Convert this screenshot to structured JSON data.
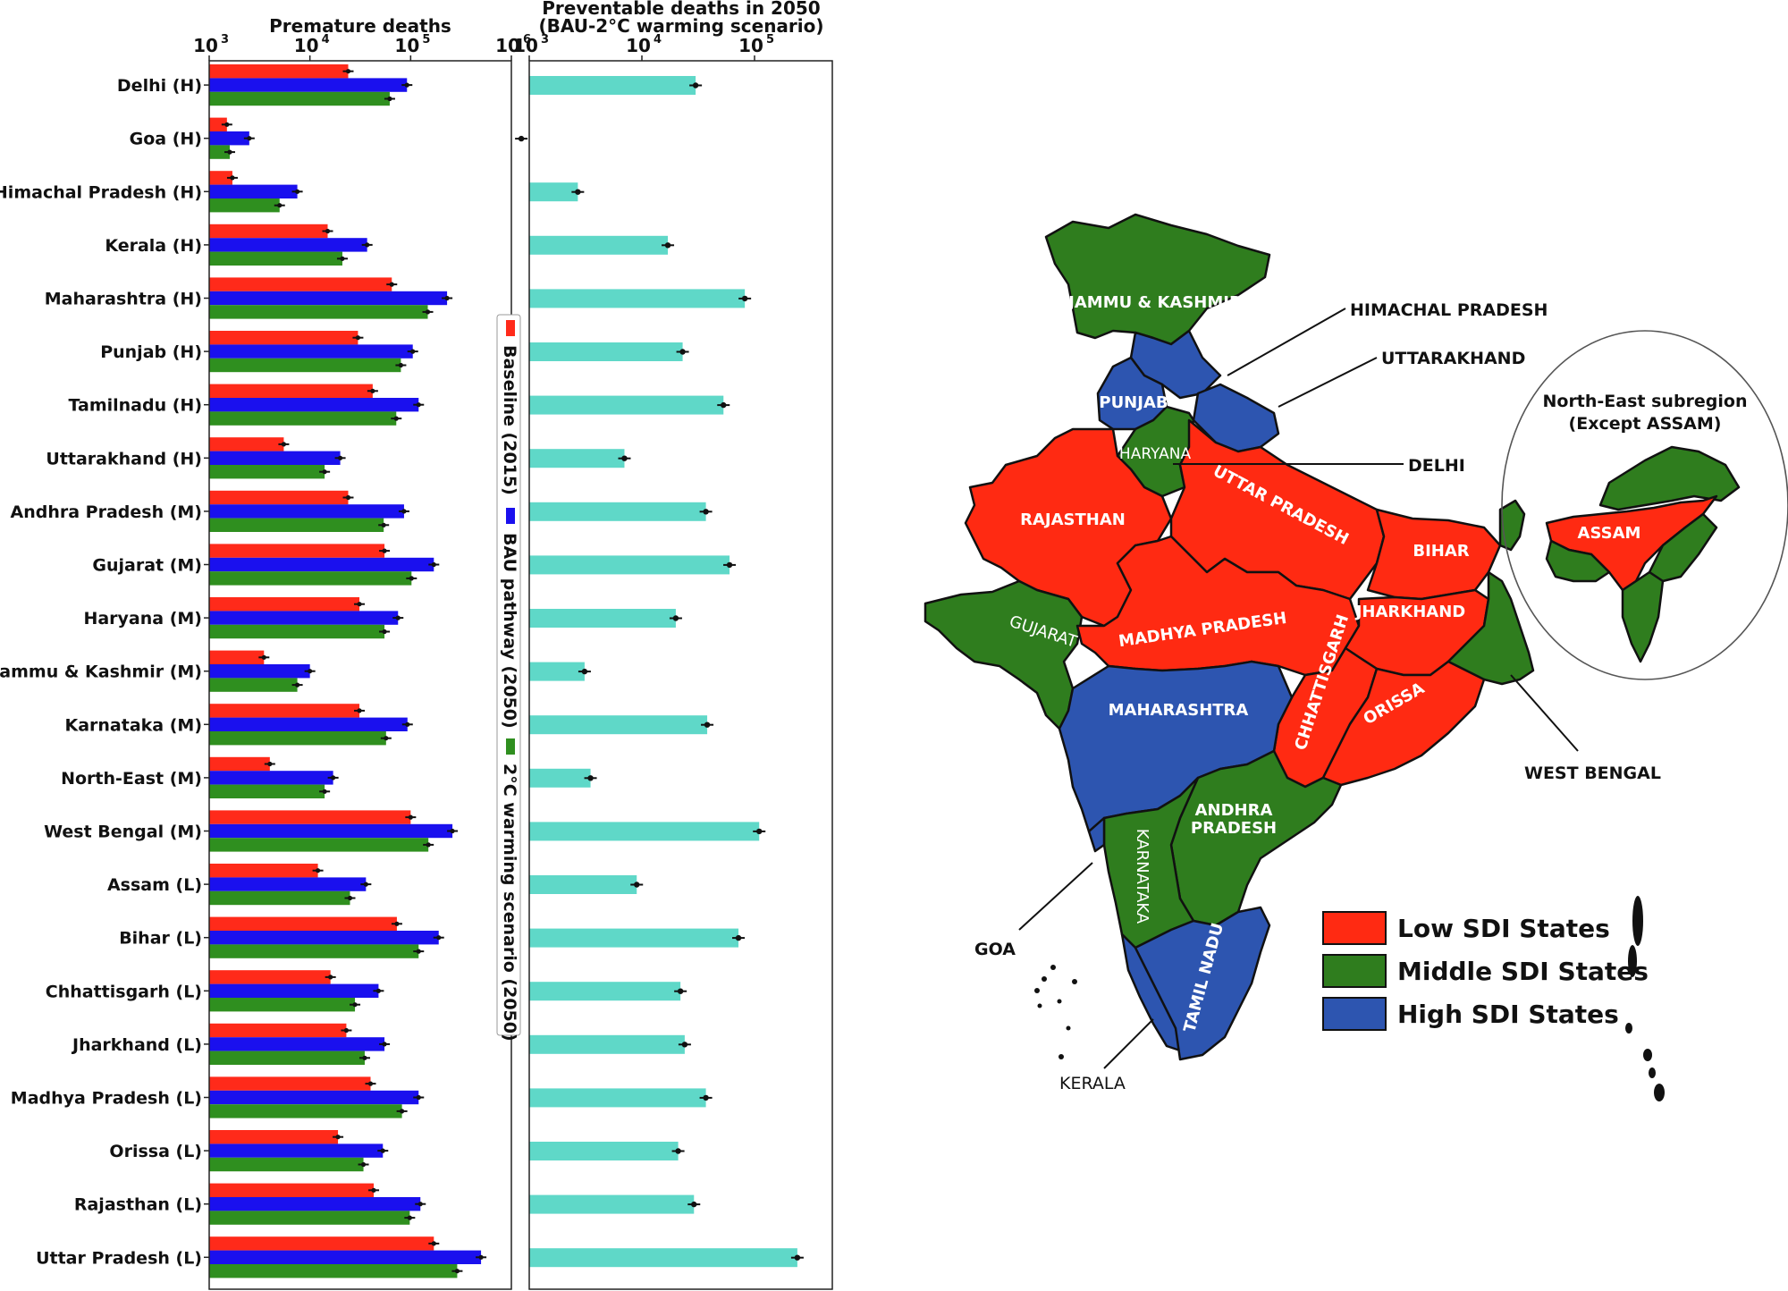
{
  "chart_data": [
    {
      "type": "bar",
      "orientation": "horizontal",
      "title": "Premature deaths",
      "xscale": "log",
      "xlim": [
        1000,
        1000000
      ],
      "xticks": [
        {
          "base": "10",
          "exp": "3"
        },
        {
          "base": "10",
          "exp": "4"
        },
        {
          "base": "10",
          "exp": "5"
        },
        {
          "base": "10",
          "exp": "6"
        }
      ],
      "categories": [
        "Delhi (H)",
        "Goa (H)",
        "Himachal Pradesh (H)",
        "Kerala (H)",
        "Maharashtra (H)",
        "Punjab (H)",
        "Tamilnadu (H)",
        "Uttarakhand (H)",
        "Andhra Pradesh (M)",
        "Gujarat (M)",
        "Haryana (M)",
        "Jammu & Kashmir (M)",
        "Karnataka (M)",
        "North-East (M)",
        "West Bengal (M)",
        "Assam (L)",
        "Bihar (L)",
        "Chhattisgarh (L)",
        "Jharkhand (L)",
        "Madhya Pradesh (L)",
        "Orissa (L)",
        "Rajasthan (L)",
        "Uttar Pradesh (L)"
      ],
      "series": [
        {
          "name": "Baseline (2015)",
          "color": "#ff2a1a",
          "values": [
            24000,
            1500,
            1700,
            15000,
            65000,
            30000,
            42000,
            5500,
            24000,
            55000,
            31000,
            3500,
            31000,
            4000,
            100000,
            12000,
            73000,
            16000,
            23000,
            40000,
            19000,
            43000,
            170000
          ]
        },
        {
          "name": "BAU pathway (2050)",
          "color": "#1a10ee",
          "values": [
            92000,
            2500,
            7500,
            37000,
            230000,
            105000,
            120000,
            20000,
            86000,
            170000,
            75000,
            10000,
            93000,
            17000,
            260000,
            36000,
            190000,
            48000,
            55000,
            120000,
            53000,
            125000,
            500000
          ]
        },
        {
          "name": "2°C warming scenario (2050)",
          "color": "#2f8f1f",
          "values": [
            62000,
            1600,
            5000,
            21000,
            148000,
            80000,
            72000,
            14000,
            54000,
            102000,
            55000,
            7500,
            57000,
            14000,
            150000,
            25000,
            120000,
            28000,
            35000,
            82000,
            34000,
            98000,
            290000
          ]
        }
      ]
    },
    {
      "type": "bar",
      "orientation": "horizontal",
      "title": "Preventable deaths in 2050",
      "subtitle": "(BAU-2°C warming scenario)",
      "xscale": "log",
      "xlim": [
        1000,
        300000
      ],
      "xticks": [
        {
          "base": "10",
          "exp": "3"
        },
        {
          "base": "10",
          "exp": "4"
        },
        {
          "base": "10",
          "exp": "5"
        }
      ],
      "color": "#5fd8c8",
      "values": [
        30000,
        850,
        2700,
        17000,
        82000,
        23000,
        53000,
        7000,
        37000,
        60000,
        20000,
        3100,
        38000,
        3500,
        110000,
        9000,
        72000,
        22000,
        24000,
        37000,
        21000,
        29000,
        240000
      ]
    }
  ],
  "map": {
    "states": [
      {
        "name": "JAMMU & KASHMIR",
        "sdi": "middle"
      },
      {
        "name": "PUNJAB",
        "sdi": "high"
      },
      {
        "name": "HARYANA",
        "sdi": "middle"
      },
      {
        "name": "RAJASTHAN",
        "sdi": "low"
      },
      {
        "name": "UTTAR PRADESH",
        "sdi": "low"
      },
      {
        "name": "BIHAR",
        "sdi": "low"
      },
      {
        "name": "ASSAM",
        "sdi": "low"
      },
      {
        "name": "GUJARAT",
        "sdi": "middle"
      },
      {
        "name": "MADHYA PRADESH",
        "sdi": "low"
      },
      {
        "name": "JHARKHAND",
        "sdi": "low"
      },
      {
        "name": "CHHATTISGARH",
        "sdi": "low"
      },
      {
        "name": "ORISSA",
        "sdi": "low"
      },
      {
        "name": "MAHARASHTRA",
        "sdi": "high"
      },
      {
        "name": "ANDHRA PRADESH",
        "sdi": "middle"
      },
      {
        "name": "KARNATAKA",
        "sdi": "middle"
      },
      {
        "name": "TAMIL NADU",
        "sdi": "high"
      }
    ],
    "callouts": [
      "HIMACHAL PRADESH",
      "UTTARAKHAND",
      "DELHI",
      "WEST BENGAL",
      "GOA",
      "KERALA"
    ],
    "northeast_title": "North-East subregion",
    "northeast_subtitle": "(Except ASSAM)",
    "legend": [
      {
        "label": "Low SDI States",
        "color": "#ff2a12"
      },
      {
        "label": "Middle SDI States",
        "color": "#2f7d1e"
      },
      {
        "label": "High SDI States",
        "color": "#2d55b0"
      }
    ]
  }
}
